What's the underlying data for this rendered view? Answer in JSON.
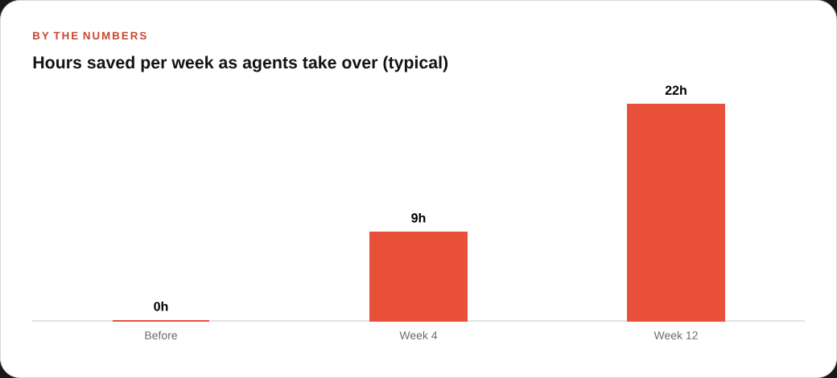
{
  "chart_data": {
    "type": "bar",
    "subtitle": "BY THE NUMBERS",
    "title": "Hours saved per week as agents take over (typical)",
    "categories": [
      "Before",
      "Week 4",
      "Week 12"
    ],
    "values": [
      0,
      9,
      22
    ],
    "color": "#e8503a",
    "value_labels": [
      "0h",
      "9h",
      "22h"
    ]
  }
}
